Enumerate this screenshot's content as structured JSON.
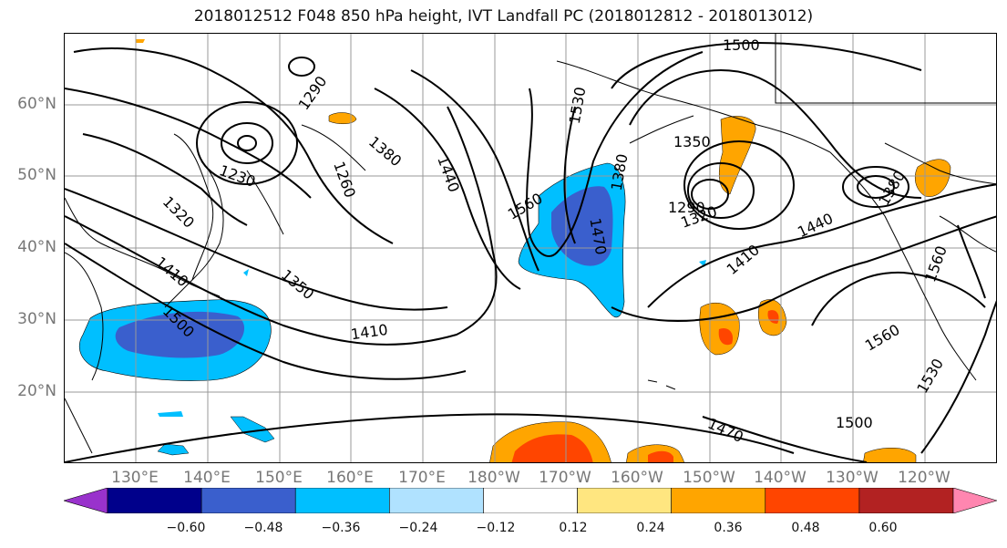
{
  "title": "2018012512 F048 850 hPa height, IVT Landfall PC (2018012812 - 2018013012)",
  "lat_labels": [
    "60°N",
    "50°N",
    "40°N",
    "30°N",
    "20°N"
  ],
  "lon_labels": [
    "130°E",
    "140°E",
    "150°E",
    "160°E",
    "170°E",
    "180°W",
    "170°W",
    "160°W",
    "150°W",
    "140°W",
    "130°W",
    "120°W"
  ],
  "contour_labels": [
    "1500",
    "1530",
    "1290",
    "1380",
    "1440",
    "1350",
    "1230",
    "1260",
    "1320",
    "1560",
    "1380",
    "1470",
    "1290",
    "1320",
    "1410",
    "1440",
    "1560",
    "1350",
    "1410",
    "1410",
    "1500",
    "1560",
    "1530",
    "1470",
    "1500",
    "1380"
  ],
  "colorbar": {
    "ticks": [
      "−0.60",
      "−0.48",
      "−0.36",
      "−0.24",
      "−0.12",
      "0.12",
      "0.24",
      "0.36",
      "0.48",
      "0.60"
    ],
    "colors": [
      "#9932cc",
      "#00008b",
      "#3a5fcd",
      "#00bfff",
      "#b0e2ff",
      "#ffffff",
      "#ffe680",
      "#ffa500",
      "#ff4500",
      "#b22222",
      "#ff86b0"
    ]
  }
}
